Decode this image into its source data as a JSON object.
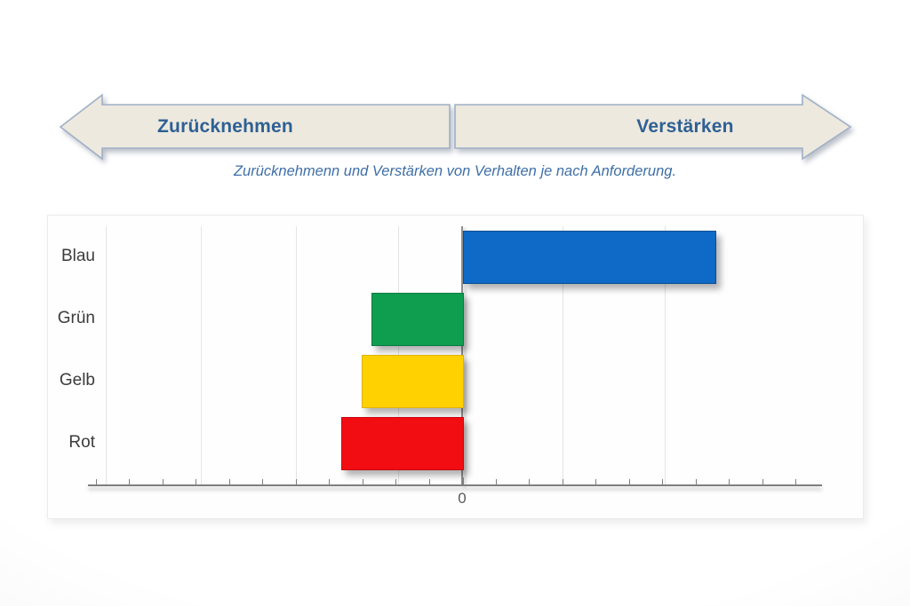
{
  "header": {
    "left_arrow_label": "Zurücknehmen",
    "right_arrow_label": "Verstärken",
    "caption": "Zurücknehmenn und Verstärken von Verhalten je nach Anforderung."
  },
  "chart_data": {
    "type": "bar",
    "orientation": "horizontal",
    "title": "",
    "xlabel": "",
    "ylabel": "",
    "categories": [
      "Blau",
      "Grün",
      "Gelb",
      "Rot"
    ],
    "values": [
      2.5,
      -0.9,
      -1.0,
      -1.2
    ],
    "bar_colors": [
      "#0E6AC6",
      "#0F9D50",
      "#FFD100",
      "#F20D13"
    ],
    "bar_border_colors": [
      "#0A4F96",
      "#0C7A3E",
      "#E0B200",
      "#C50A10"
    ],
    "xlim": [
      -3.7,
      3.6
    ],
    "x_tick_labels_visible": [
      "0"
    ],
    "grid": "vertical light-gray gridlines, dark zero baseline",
    "legend": "none"
  },
  "colors": {
    "arrow_fill": "#EDE9DE",
    "arrow_border": "#9FB0C7",
    "arrow_text": "#2E6094",
    "caption_text": "#3E6FA6",
    "panel_background": "#FEFEFE",
    "gridline": "#E4E4E4",
    "axis": "#7F7F7F",
    "category_text": "#3B3B3B"
  }
}
